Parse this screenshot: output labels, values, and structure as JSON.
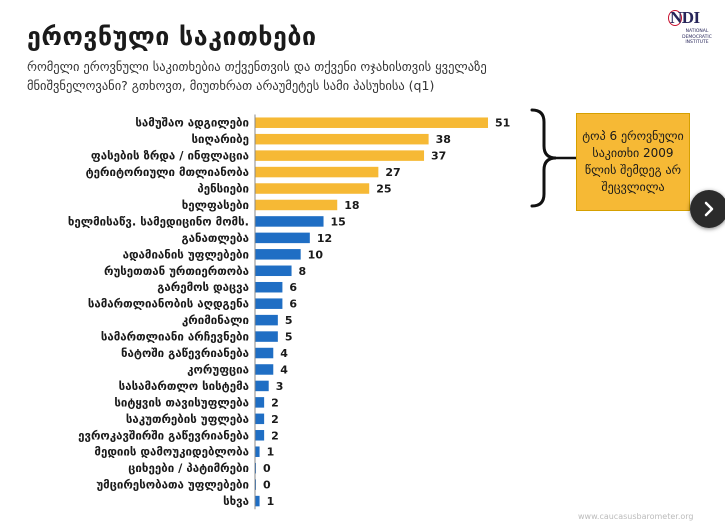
{
  "header": {
    "title": "ეროვნული საკითხები",
    "subtitle": "რომელი ეროვნული საკითხებია თქვენთვის და თქვენი ოჯახისთვის ყველაზე მნიშვნელოვანი? გთხოვთ, მიუთხრათ არაუმეტეს სამი პასუხისა (q1)"
  },
  "logo": {
    "main": "NDI",
    "sub": "NATIONAL DEMOCRATIC INSTITUTE"
  },
  "note": {
    "text": "ტოპ 6 ეროვნული საკითხი 2009 წლის შემდეგ არ შეცვლილა"
  },
  "footer": {
    "text": "www.caucasusbarometer.org"
  },
  "colors": {
    "highlight": "#f6b935",
    "regular": "#1f6ec4"
  },
  "chart_data": {
    "type": "bar",
    "orientation": "horizontal",
    "categories": [
      "სამუშაო ადგილები",
      "სიღარიბე",
      "ფასების ზრდა / ინფლაცია",
      "ტერიტორიული მთლიანობა",
      "პენსიები",
      "ხელფასები",
      "ხელმისაწვ. სამედიცინო მომს.",
      "განათლება",
      "ადამიანის უფლებები",
      "რუსეთთან ურთიერთობა",
      "გარემოს დაცვა",
      "სამართლიანობის აღდგენა",
      "კრიმინალი",
      "სამართლიანი არჩევნები",
      "ნატოში გაწევრიანება",
      "კორუფცია",
      "სასამართლო სისტემა",
      "სიტყვის თავისუფლება",
      "საკუთრების უფლება",
      "ევროკავშირში გაწევრიანება",
      "მედიის დამოუკიდებლობა",
      "ციხეები / პატიმრები",
      "უმცირესობათა უფლებები",
      "სხვა"
    ],
    "values": [
      51,
      38,
      37,
      27,
      25,
      18,
      15,
      12,
      10,
      8,
      6,
      6,
      5,
      5,
      4,
      4,
      3,
      2,
      2,
      2,
      1,
      0,
      0,
      1
    ],
    "highlight_count": 6,
    "xlim": [
      0,
      55
    ],
    "grid": false,
    "title": "ეროვნული საკითხები"
  }
}
